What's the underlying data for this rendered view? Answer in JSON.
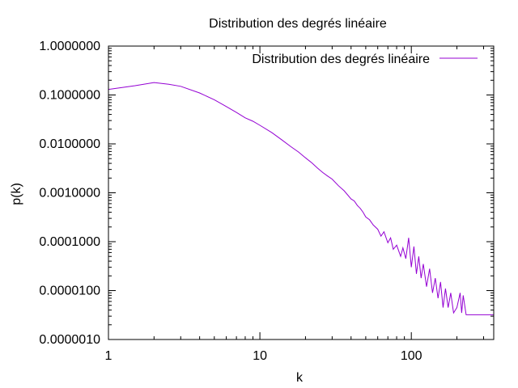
{
  "chart_data": {
    "type": "line",
    "title": "Distribution des degrés linéaire",
    "xlabel": "k",
    "ylabel": "p(k)",
    "xscale": "log",
    "yscale": "log",
    "xlim": [
      1,
      350
    ],
    "ylim": [
      1e-06,
      1
    ],
    "grid": false,
    "legend_position": "top-right",
    "x_ticks": [
      {
        "value": 1,
        "label": "1"
      },
      {
        "value": 10,
        "label": "10"
      },
      {
        "value": 100,
        "label": "100"
      }
    ],
    "y_ticks": [
      {
        "value": 1,
        "label": "1.0000000"
      },
      {
        "value": 0.1,
        "label": "0.1000000"
      },
      {
        "value": 0.01,
        "label": "0.0100000"
      },
      {
        "value": 0.001,
        "label": "0.0010000"
      },
      {
        "value": 0.0001,
        "label": "0.0001000"
      },
      {
        "value": 1e-05,
        "label": "0.0000100"
      },
      {
        "value": 1e-06,
        "label": "0.0000010"
      }
    ],
    "series": [
      {
        "name": "Distribution des degrés linéaire",
        "color": "#9400d3",
        "x": [
          1,
          1.5,
          2,
          2.5,
          3,
          4,
          5,
          6,
          7,
          8,
          9,
          10,
          12,
          14,
          16,
          18,
          20,
          22,
          24,
          26,
          28,
          30,
          33,
          36,
          40,
          42,
          44,
          46,
          48,
          50,
          53,
          56,
          60,
          63,
          66,
          70,
          73,
          76,
          80,
          85,
          88,
          92,
          96,
          100,
          104,
          108,
          112,
          116,
          120,
          126,
          132,
          138,
          144,
          150,
          156,
          162,
          168,
          175,
          182,
          190,
          200,
          210,
          215,
          220,
          230,
          250,
          300,
          350
        ],
        "y": [
          0.13,
          0.155,
          0.18,
          0.165,
          0.15,
          0.11,
          0.08,
          0.058,
          0.044,
          0.034,
          0.029,
          0.024,
          0.017,
          0.012,
          0.0088,
          0.0068,
          0.0052,
          0.0041,
          0.0032,
          0.0026,
          0.0022,
          0.0019,
          0.0014,
          0.0011,
          0.00075,
          0.00068,
          0.00055,
          0.00048,
          0.0004,
          0.00032,
          0.00028,
          0.00022,
          0.00018,
          0.00013,
          0.00016,
          9.5e-05,
          0.00012,
          7e-05,
          8.5e-05,
          5e-05,
          7.5e-05,
          4.5e-05,
          0.00012,
          3e-05,
          8e-05,
          2.2e-05,
          5e-05,
          1.8e-05,
          3.5e-05,
          1.2e-05,
          2.8e-05,
          9e-06,
          1.8e-05,
          7e-06,
          1.5e-05,
          4.5e-06,
          1.1e-05,
          4.5e-06,
          9e-06,
          3.5e-06,
          4.5e-06,
          9e-06,
          3.5e-06,
          8e-06,
          3.2e-06,
          3.2e-06,
          3.2e-06,
          3.2e-06
        ]
      }
    ]
  }
}
